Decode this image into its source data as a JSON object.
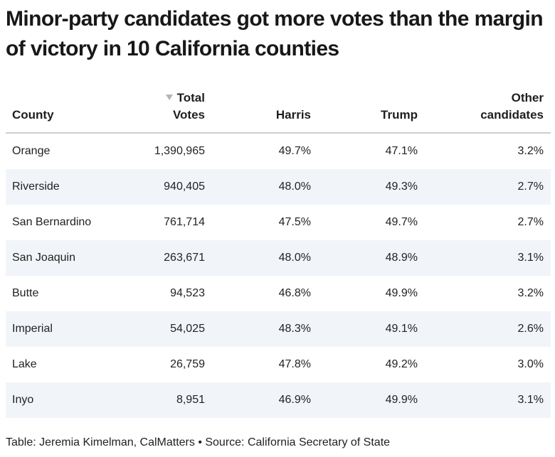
{
  "chart_data": {
    "type": "table",
    "title": "Minor-party candidates got more votes than the margin of victory in 10 California counties",
    "columns": [
      "County",
      "Total Votes",
      "Harris",
      "Trump",
      "Other candidates"
    ],
    "headers": {
      "county": "County",
      "total_line1": "Total",
      "total_line2": "Votes",
      "harris": "Harris",
      "trump": "Trump",
      "other_line1": "Other",
      "other_line2": "candidates"
    },
    "sorted_column": "Total Votes",
    "sort_direction": "descending",
    "rows": [
      {
        "county": "Orange",
        "total_votes": "1,390,965",
        "harris": "49.7%",
        "trump": "47.1%",
        "other": "3.2%"
      },
      {
        "county": "Riverside",
        "total_votes": "940,405",
        "harris": "48.0%",
        "trump": "49.3%",
        "other": "2.7%"
      },
      {
        "county": "San Bernardino",
        "total_votes": "761,714",
        "harris": "47.5%",
        "trump": "49.7%",
        "other": "2.7%"
      },
      {
        "county": "San Joaquin",
        "total_votes": "263,671",
        "harris": "48.0%",
        "trump": "48.9%",
        "other": "3.1%"
      },
      {
        "county": "Butte",
        "total_votes": "94,523",
        "harris": "46.8%",
        "trump": "49.9%",
        "other": "3.2%"
      },
      {
        "county": "Imperial",
        "total_votes": "54,025",
        "harris": "48.3%",
        "trump": "49.1%",
        "other": "2.6%"
      },
      {
        "county": "Lake",
        "total_votes": "26,759",
        "harris": "47.8%",
        "trump": "49.2%",
        "other": "3.0%"
      },
      {
        "county": "Inyo",
        "total_votes": "8,951",
        "harris": "46.9%",
        "trump": "49.9%",
        "other": "3.1%"
      }
    ],
    "source": "Table: Jeremia Kimelman, CalMatters • Source: California Secretary of State"
  },
  "colors": {
    "alt_row_background": "#f1f5f9",
    "header_rule": "#cfcfcf",
    "sort_arrow": "#b5b5b5"
  }
}
